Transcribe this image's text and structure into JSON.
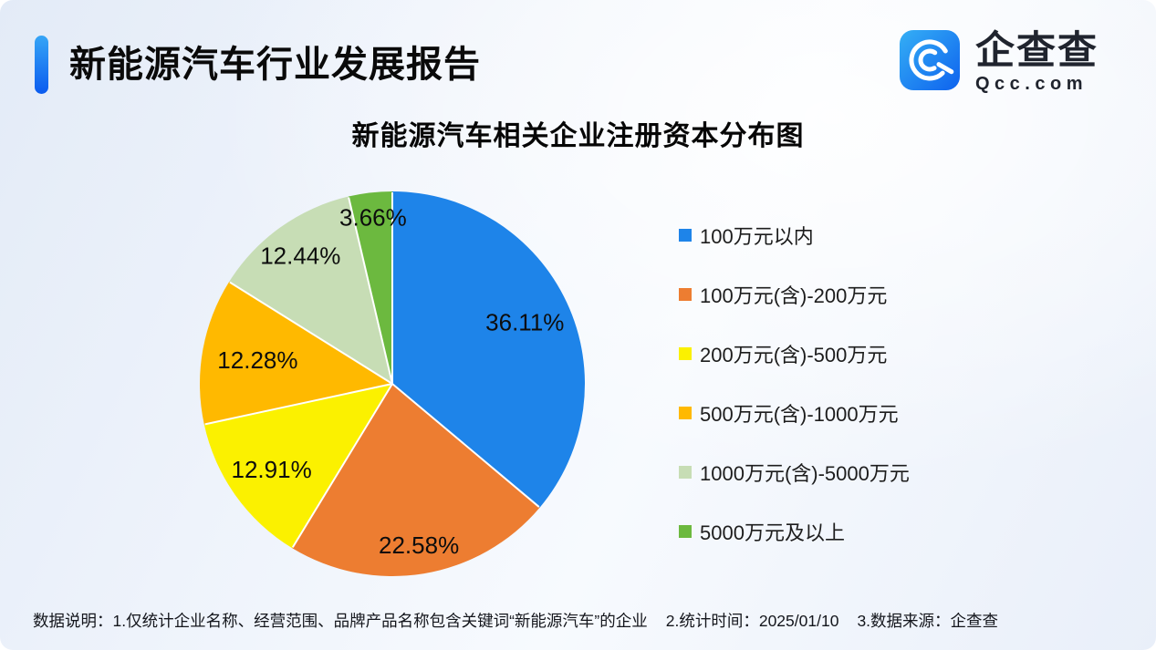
{
  "header": {
    "title": "新能源汽车行业发展报告",
    "logo": {
      "icon": "magnifier-q-icon",
      "name": "企查查",
      "domain": "Qcc.com"
    }
  },
  "chart_data": {
    "type": "pie",
    "title": "新能源汽车相关企业注册资本分布图",
    "unit": "%",
    "legend_position": "right",
    "start_angle": "top",
    "direction": "clockwise",
    "series": [
      {
        "label": "100万元以内",
        "value": 36.11,
        "color": "#1E84E9"
      },
      {
        "label": "100万元(含)-200万元",
        "value": 22.58,
        "color": "#ED7D31"
      },
      {
        "label": "200万元(含)-500万元",
        "value": 12.91,
        "color": "#FBF100"
      },
      {
        "label": "500万元(含)-1000万元",
        "value": 12.28,
        "color": "#FFB900"
      },
      {
        "label": "1000万元(含)-5000万元",
        "value": 12.44,
        "color": "#C7DDB5"
      },
      {
        "label": "5000万元及以上",
        "value": 3.66,
        "color": "#6CB93F"
      }
    ]
  },
  "footer": {
    "part1": "数据说明：1.仅统计企业名称、经营范围、品牌产品名称包含关键词“新能源汽车”的企业",
    "part2": "2.统计时间：2025/01/10",
    "part3": "3.数据来源：企查查"
  },
  "theme": {
    "accent_bar_gradient": [
      "#36A5F6",
      "#0B5BEF"
    ],
    "logo_gradient": [
      "#35AFF5",
      "#0E62EE"
    ],
    "background_gradient": [
      "#E3EBF7",
      "#F7FAFE"
    ],
    "pie_label_color": "#0D0D0D",
    "pie_separator_color": "#FFFFFF"
  }
}
